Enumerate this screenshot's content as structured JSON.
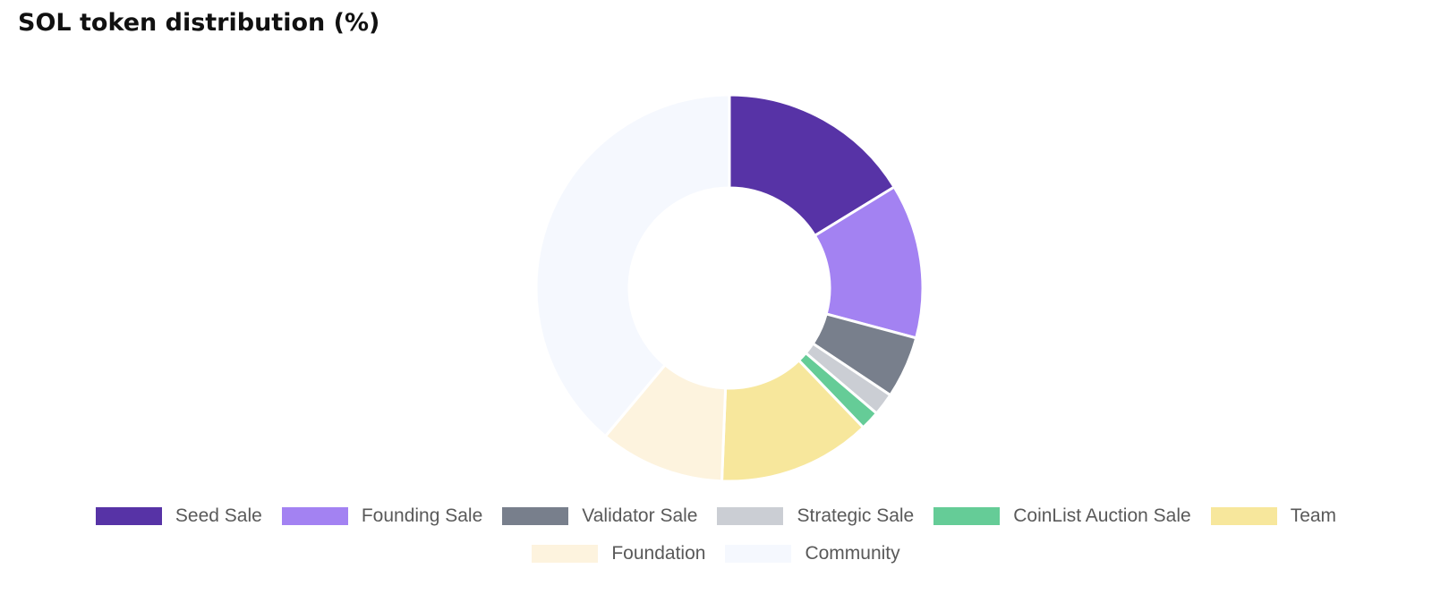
{
  "chart_data": {
    "type": "pie",
    "variant": "donut",
    "title": "SOL token distribution (%)",
    "legend_position": "bottom",
    "slices": [
      {
        "label": "Seed Sale",
        "value": 16.23,
        "color": "#5733A6"
      },
      {
        "label": "Founding Sale",
        "value": 12.92,
        "color": "#A382F2"
      },
      {
        "label": "Validator Sale",
        "value": 5.18,
        "color": "#787F8C"
      },
      {
        "label": "Strategic Sale",
        "value": 1.88,
        "color": "#CBCED4"
      },
      {
        "label": "CoinList Auction Sale",
        "value": 1.6,
        "color": "#65CC97"
      },
      {
        "label": "Team",
        "value": 12.79,
        "color": "#F7E79C"
      },
      {
        "label": "Foundation",
        "value": 10.46,
        "color": "#FDF3DE"
      },
      {
        "label": "Community",
        "value": 38.89,
        "color": "#F5F8FE"
      }
    ]
  }
}
